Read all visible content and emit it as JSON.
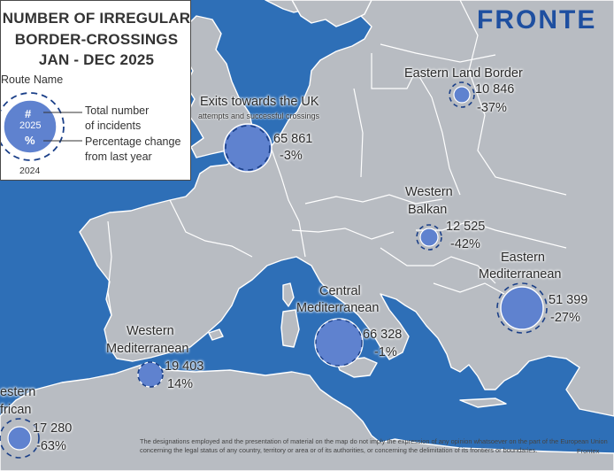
{
  "legend": {
    "title_lines": [
      "NUMBER OF IRREGULAR",
      "BORDER-CROSSINGS",
      "JAN - DEC 2025"
    ],
    "route_name": "Route Name",
    "hash": "#",
    "year_current": "2025",
    "pct": "%",
    "year_previous": "2024",
    "total_lines": [
      "Total number",
      "of incidents"
    ],
    "pct_lines": [
      "Percentage change",
      "from last year"
    ]
  },
  "brand": "FRONTE",
  "routes": [
    {
      "name_lines": [
        "Eastern Land Border"
      ],
      "total": "10 846",
      "change": "-37%"
    },
    {
      "name_lines": [
        "Exits towards the UK"
      ],
      "subtitle": "attempts and successful crossings",
      "total": "65 861",
      "change": "-3%"
    },
    {
      "name_lines": [
        "Western",
        "Balkan"
      ],
      "total": "12 525",
      "change": "-42%"
    },
    {
      "name_lines": [
        "Eastern",
        "Mediterranean"
      ],
      "total": "51 399",
      "change": "-27%"
    },
    {
      "name_lines": [
        "Central",
        "Mediterranean"
      ],
      "total": "66 328",
      "change": "-1%"
    },
    {
      "name_lines": [
        "Western",
        "Mediterranean"
      ],
      "total": "19 403",
      "change": "14%"
    },
    {
      "name_lines": [
        "estern",
        "frican"
      ],
      "total": "17 280",
      "change": "-63%"
    }
  ],
  "colors": {
    "sea": "#2e6fb7",
    "land": "#b8bcc2",
    "marker_fill": "#5f82cf",
    "marker_ring": "#1a3f88",
    "brand": "#1e4fa0"
  },
  "disclaimer": "The designations employed and the presentation of material on the map do not imply the expression of any opinion whatsoever on the part of the European Union concerning the legal status of any country, territory or area or of its authorities, or concerning the delimitation of its frontiers or boundaries.",
  "credit": "Frontex"
}
